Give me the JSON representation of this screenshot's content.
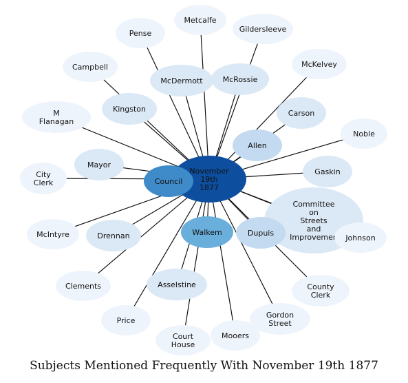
{
  "caption": "Subjects Mentioned Frequently With November 19th 1877",
  "center": {
    "label": [
      "November",
      "19th",
      "1877"
    ],
    "color": "#0d4f9e"
  },
  "nodes": [
    {
      "id": "metcalfe",
      "label": [
        "Metcalfe"
      ],
      "color": "#eef4fb"
    },
    {
      "id": "pense",
      "label": [
        "Pense"
      ],
      "color": "#eef4fb"
    },
    {
      "id": "gildersleeve",
      "label": [
        "Gildersleeve"
      ],
      "color": "#eef4fb"
    },
    {
      "id": "mckelvey",
      "label": [
        "McKelvey"
      ],
      "color": "#eef4fb"
    },
    {
      "id": "campbell",
      "label": [
        "Campbell"
      ],
      "color": "#eef4fb"
    },
    {
      "id": "mcdermott",
      "label": [
        "McDermott"
      ],
      "color": "#dbe8f5"
    },
    {
      "id": "mcrossie",
      "label": [
        "McRossie"
      ],
      "color": "#dbe8f5"
    },
    {
      "id": "kingston",
      "label": [
        "Kingston"
      ],
      "color": "#dbe8f5"
    },
    {
      "id": "carson",
      "label": [
        "Carson"
      ],
      "color": "#dbe8f5"
    },
    {
      "id": "m-flanagan",
      "label": [
        "M",
        "Flanagan"
      ],
      "color": "#eef4fb"
    },
    {
      "id": "noble",
      "label": [
        "Noble"
      ],
      "color": "#eef4fb"
    },
    {
      "id": "allen",
      "label": [
        "Allen"
      ],
      "color": "#c4daf0"
    },
    {
      "id": "mayor",
      "label": [
        "Mayor"
      ],
      "color": "#dbe8f5"
    },
    {
      "id": "city-clerk",
      "label": [
        "City",
        "Clerk"
      ],
      "color": "#eef4fb"
    },
    {
      "id": "council",
      "label": [
        "Council"
      ],
      "color": "#3f8ac8"
    },
    {
      "id": "gaskin",
      "label": [
        "Gaskin"
      ],
      "color": "#dbe8f5"
    },
    {
      "id": "committee",
      "label": [
        "Committee",
        "on",
        "Streets",
        "and",
        "Improvemen"
      ],
      "color": "#dbe8f5"
    },
    {
      "id": "mcintyre",
      "label": [
        "McIntyre"
      ],
      "color": "#eef4fb"
    },
    {
      "id": "drennan",
      "label": [
        "Drennan"
      ],
      "color": "#dbe8f5"
    },
    {
      "id": "walkem",
      "label": [
        "Walkem"
      ],
      "color": "#6aaedb"
    },
    {
      "id": "dupuis",
      "label": [
        "Dupuis"
      ],
      "color": "#c4daf0"
    },
    {
      "id": "johnson",
      "label": [
        "Johnson"
      ],
      "color": "#eef4fb"
    },
    {
      "id": "clements",
      "label": [
        "Clements"
      ],
      "color": "#eef4fb"
    },
    {
      "id": "asselstine",
      "label": [
        "Asselstine"
      ],
      "color": "#dbe8f5"
    },
    {
      "id": "county-clerk",
      "label": [
        "County",
        "Clerk"
      ],
      "color": "#eef4fb"
    },
    {
      "id": "price",
      "label": [
        "Price"
      ],
      "color": "#eef4fb"
    },
    {
      "id": "gordon-street",
      "label": [
        "Gordon",
        "Street"
      ],
      "color": "#eef4fb"
    },
    {
      "id": "court-house",
      "label": [
        "Court",
        "House"
      ],
      "color": "#eef4fb"
    },
    {
      "id": "mooers",
      "label": [
        "Mooers"
      ],
      "color": "#eef4fb"
    }
  ]
}
